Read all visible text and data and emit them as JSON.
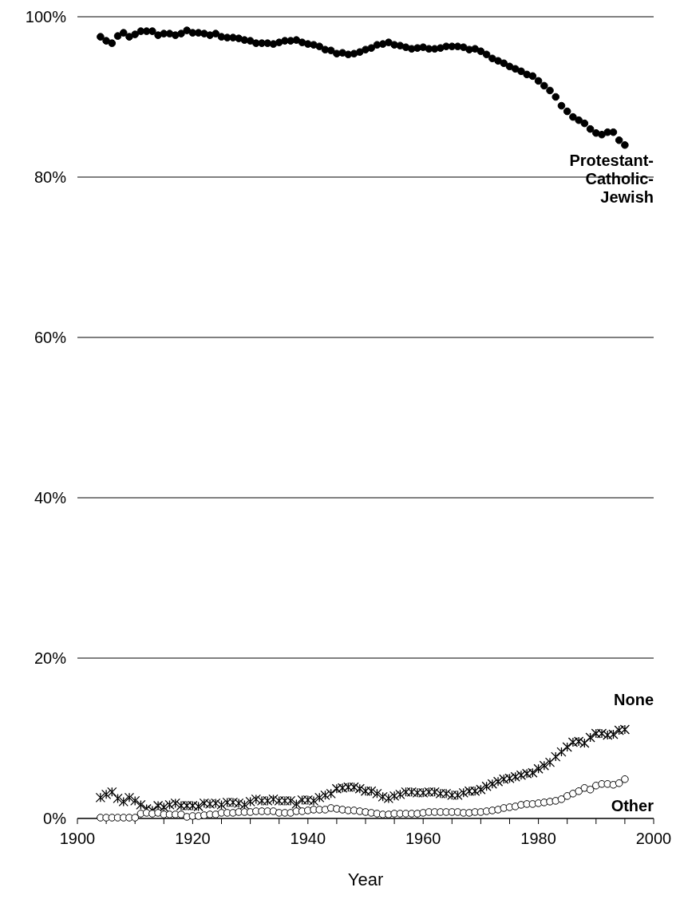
{
  "chart_data": {
    "type": "scatter",
    "xlabel": "Year",
    "x": [
      1904,
      1905,
      1906,
      1907,
      1908,
      1909,
      1910,
      1911,
      1912,
      1913,
      1914,
      1915,
      1916,
      1917,
      1918,
      1919,
      1920,
      1921,
      1922,
      1923,
      1924,
      1925,
      1926,
      1927,
      1928,
      1929,
      1930,
      1931,
      1932,
      1933,
      1934,
      1935,
      1936,
      1937,
      1938,
      1939,
      1940,
      1941,
      1942,
      1943,
      1944,
      1945,
      1946,
      1947,
      1948,
      1949,
      1950,
      1951,
      1952,
      1953,
      1954,
      1955,
      1956,
      1957,
      1958,
      1959,
      1960,
      1961,
      1962,
      1963,
      1964,
      1965,
      1966,
      1967,
      1968,
      1969,
      1970,
      1971,
      1972,
      1973,
      1974,
      1975,
      1976,
      1977,
      1978,
      1979,
      1980,
      1981,
      1982,
      1983,
      1984,
      1985,
      1986,
      1987,
      1988,
      1989,
      1990,
      1991,
      1992,
      1993,
      1994,
      1995
    ],
    "series": [
      {
        "name": "Protestant-Catholic-Jewish",
        "color": "#000000",
        "marker": "circle",
        "values": [
          97.5,
          97,
          96.7,
          97.6,
          98,
          97.5,
          97.8,
          98.2,
          98.2,
          98.2,
          97.7,
          97.9,
          97.9,
          97.7,
          97.9,
          98.3,
          98,
          98,
          97.9,
          97.7,
          97.9,
          97.5,
          97.4,
          97.4,
          97.3,
          97.1,
          97,
          96.7,
          96.7,
          96.7,
          96.6,
          96.8,
          97,
          97,
          97.1,
          96.8,
          96.6,
          96.5,
          96.3,
          95.9,
          95.8,
          95.4,
          95.5,
          95.3,
          95.4,
          95.6,
          95.9,
          96.1,
          96.5,
          96.6,
          96.8,
          96.5,
          96.4,
          96.2,
          96,
          96.1,
          96.2,
          96,
          96,
          96.1,
          96.3,
          96.3,
          96.3,
          96.2,
          95.9,
          96,
          95.7,
          95.3,
          94.8,
          94.5,
          94.2,
          93.8,
          93.5,
          93.2,
          92.8,
          92.6,
          92,
          91.4,
          90.8,
          90,
          88.9,
          88.2,
          87.5,
          87.1,
          86.7,
          86,
          85.5,
          85.3,
          85.6,
          85.6,
          84.6,
          84
        ]
      },
      {
        "name": "None",
        "color": "#000000",
        "marker": "cross",
        "values": [
          2.6,
          3,
          3.3,
          2.5,
          2.1,
          2.6,
          2.2,
          1.7,
          1.2,
          1,
          1.6,
          1.4,
          1.7,
          1.9,
          1.6,
          1.6,
          1.6,
          1.5,
          1.9,
          1.8,
          1.9,
          1.7,
          2,
          2,
          1.9,
          1.7,
          2.1,
          2.4,
          2.2,
          2.2,
          2.4,
          2.2,
          2.2,
          2.2,
          1.8,
          2.3,
          2.3,
          2.2,
          2.6,
          2.9,
          3.1,
          3.7,
          3.8,
          3.9,
          3.9,
          3.7,
          3.4,
          3.4,
          3.1,
          2.7,
          2.5,
          2.8,
          3,
          3.3,
          3.3,
          3.2,
          3.2,
          3.3,
          3.3,
          3.1,
          3.1,
          2.9,
          2.9,
          3.2,
          3.4,
          3.4,
          3.6,
          4,
          4.3,
          4.6,
          4.9,
          5,
          5.2,
          5.4,
          5.6,
          5.7,
          6.2,
          6.6,
          7,
          7.7,
          8.3,
          8.9,
          9.5,
          9.6,
          9.4,
          10.1,
          10.6,
          10.6,
          10.4,
          10.5,
          11,
          11.1
        ]
      },
      {
        "name": "Other",
        "color": "#ffffff",
        "marker": "circle",
        "values": [
          0.1,
          0.1,
          0.1,
          0.1,
          0.1,
          0.1,
          0.1,
          0.6,
          0.7,
          0.6,
          0.7,
          0.5,
          0.5,
          0.5,
          0.5,
          0.2,
          0.3,
          0.3,
          0.4,
          0.5,
          0.5,
          0.7,
          0.7,
          0.7,
          0.8,
          0.8,
          0.8,
          0.9,
          0.9,
          0.9,
          0.9,
          0.7,
          0.7,
          0.7,
          0.9,
          0.9,
          1,
          1.1,
          1.1,
          1.1,
          1.3,
          1.2,
          1.1,
          1,
          1,
          0.9,
          0.8,
          0.7,
          0.6,
          0.5,
          0.5,
          0.6,
          0.6,
          0.6,
          0.6,
          0.6,
          0.7,
          0.8,
          0.8,
          0.8,
          0.8,
          0.8,
          0.8,
          0.7,
          0.7,
          0.8,
          0.8,
          0.9,
          1,
          1.1,
          1.3,
          1.4,
          1.5,
          1.7,
          1.8,
          1.8,
          1.9,
          2,
          2.1,
          2.2,
          2.4,
          2.8,
          3.1,
          3.4,
          3.8,
          3.6,
          4.1,
          4.3,
          4.3,
          4.2,
          4.4,
          4.9
        ]
      }
    ],
    "xlim": [
      1900,
      2000
    ],
    "xticks": [
      1900,
      {
        "value": 1905,
        "label": null
      },
      {
        "value": 1910,
        "label": null
      },
      {
        "value": 1915,
        "label": null
      },
      1920,
      {
        "value": 1925,
        "label": null
      },
      {
        "value": 1930,
        "label": null
      },
      {
        "value": 1935,
        "label": null
      },
      1940,
      {
        "value": 1945,
        "label": null
      },
      {
        "value": 1950,
        "label": null
      },
      {
        "value": 1955,
        "label": null
      },
      1960,
      {
        "value": 1965,
        "label": null
      },
      {
        "value": 1970,
        "label": null
      },
      {
        "value": 1975,
        "label": null
      },
      1980,
      {
        "value": 1985,
        "label": null
      },
      {
        "value": 1990,
        "label": null
      },
      {
        "value": 1995,
        "label": null
      },
      2000
    ],
    "ylim": [
      0,
      100
    ],
    "yticks": [
      {
        "value": 0,
        "label": "0%"
      },
      {
        "value": 20,
        "label": "20%"
      },
      {
        "value": 40,
        "label": "40%"
      },
      {
        "value": 60,
        "label": "60%"
      },
      {
        "value": 80,
        "label": "80%"
      },
      {
        "value": 100,
        "label": "100%"
      }
    ],
    "grid": "y"
  }
}
